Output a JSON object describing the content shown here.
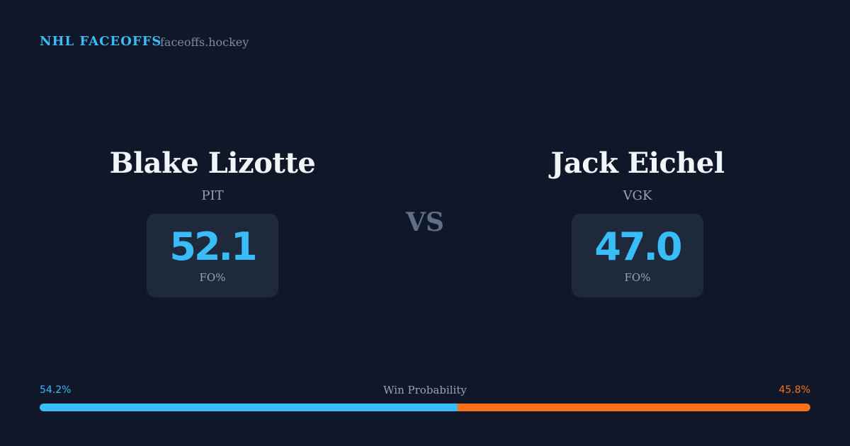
{
  "header": {
    "title": "NHL FACEOFFS",
    "site": "faceoffs.hockey"
  },
  "players": [
    {
      "name": "Blake Lizotte",
      "team": "PIT",
      "fo_pct": "52.1",
      "fo_label": "FO%"
    },
    {
      "name": "Jack Eichel",
      "team": "VGK",
      "fo_pct": "47.0",
      "fo_label": "FO%"
    }
  ],
  "vs": "VS",
  "win_probability": {
    "label": "Win Probability",
    "values": [
      54.2,
      45.8
    ],
    "value_labels": [
      "54.2%",
      "45.8%"
    ],
    "colors": [
      "#38bdf8",
      "#f97316"
    ]
  }
}
